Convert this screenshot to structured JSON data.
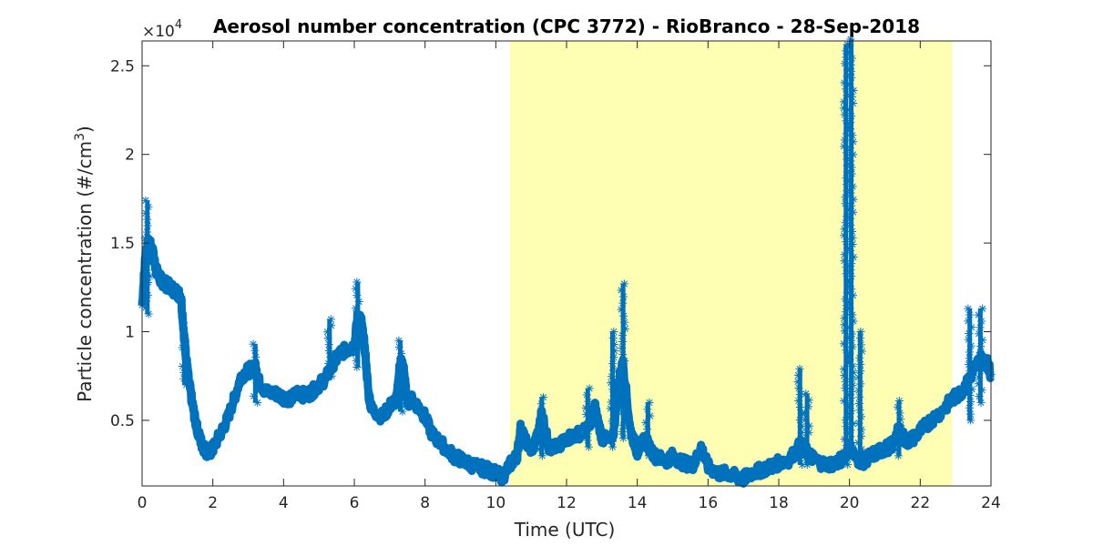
{
  "chart_data": {
    "type": "scatter",
    "title": "Aerosol number concentration (CPC 3772) - RioBranco - 28-Sep-2018",
    "xlabel": "Time (UTC)",
    "ylabel_main": "Particle concentration (#/cm",
    "ylabel_sup": "3",
    "ylabel_end": ")",
    "y_multiplier": "×10",
    "y_multiplier_exp": "4",
    "xlim": [
      0,
      24
    ],
    "ylim": [
      0.13,
      2.64
    ],
    "x_ticks": [
      0,
      2,
      4,
      6,
      8,
      10,
      12,
      14,
      16,
      18,
      20,
      22,
      24
    ],
    "y_ticks": [
      0.5,
      1,
      1.5,
      2,
      2.5
    ],
    "y_tick_labels": [
      "0.5",
      "1",
      "1.5",
      "2",
      "2.5"
    ],
    "grid": false,
    "marker": "asterisk",
    "series_color": "#0072BD",
    "shaded_region": {
      "x_start": 10.4,
      "x_end": 22.9,
      "color": "#FFFFB3"
    },
    "series": [
      {
        "x": [
          0.0,
          0.1,
          0.2,
          0.3,
          0.4,
          0.5,
          0.6,
          0.8,
          1.0,
          1.1,
          1.2,
          1.25,
          1.3,
          1.4,
          1.5,
          1.6,
          1.7,
          1.8,
          1.9,
          2.0,
          2.2,
          2.4,
          2.6,
          2.8,
          3.0,
          3.2,
          3.3,
          3.5,
          3.8,
          4.0,
          4.2,
          4.4,
          4.6,
          4.8,
          5.0,
          5.2,
          5.4,
          5.6,
          5.8,
          6.0,
          6.1,
          6.2,
          6.3,
          6.4,
          6.5,
          6.8,
          7.0,
          7.2,
          7.3,
          7.4,
          7.5,
          7.6,
          7.8,
          8.0,
          8.2,
          8.5,
          8.8,
          9.0,
          9.3,
          9.6,
          9.8,
          10.0,
          10.2,
          10.4,
          10.6,
          10.7,
          10.8,
          11.0,
          11.2,
          11.3,
          11.5,
          11.8,
          12.0,
          12.3,
          12.6,
          12.8,
          13.0,
          13.3,
          13.5,
          13.6,
          13.8,
          14.0,
          14.2,
          14.5,
          14.8,
          15.0,
          15.3,
          15.6,
          15.8,
          16.0,
          16.3,
          16.6,
          16.8,
          17.0,
          17.2,
          17.5,
          17.8,
          18.0,
          18.3,
          18.6,
          18.8,
          19.0,
          19.3,
          19.6,
          19.8,
          20.0,
          20.2,
          20.4,
          20.6,
          20.8,
          21.0,
          21.2,
          21.4,
          21.6,
          21.8,
          22.0,
          22.3,
          22.6,
          22.9,
          23.1,
          23.3,
          23.5,
          23.7,
          23.9,
          24.0
        ],
        "y": [
          1.15,
          1.45,
          1.5,
          1.45,
          1.35,
          1.3,
          1.28,
          1.25,
          1.22,
          1.2,
          0.95,
          0.85,
          0.75,
          0.62,
          0.5,
          0.42,
          0.36,
          0.33,
          0.32,
          0.34,
          0.42,
          0.5,
          0.62,
          0.75,
          0.78,
          0.8,
          0.72,
          0.66,
          0.65,
          0.63,
          0.62,
          0.66,
          0.64,
          0.66,
          0.7,
          0.74,
          0.82,
          0.88,
          0.9,
          0.92,
          1.1,
          1.05,
          0.9,
          0.65,
          0.56,
          0.52,
          0.58,
          0.62,
          0.85,
          0.78,
          0.6,
          0.62,
          0.58,
          0.52,
          0.42,
          0.36,
          0.3,
          0.28,
          0.25,
          0.23,
          0.22,
          0.2,
          0.18,
          0.25,
          0.3,
          0.45,
          0.4,
          0.33,
          0.42,
          0.55,
          0.35,
          0.35,
          0.4,
          0.42,
          0.45,
          0.58,
          0.4,
          0.38,
          0.75,
          0.82,
          0.45,
          0.32,
          0.4,
          0.3,
          0.27,
          0.3,
          0.26,
          0.25,
          0.35,
          0.24,
          0.2,
          0.2,
          0.18,
          0.17,
          0.2,
          0.22,
          0.24,
          0.26,
          0.28,
          0.36,
          0.32,
          0.28,
          0.25,
          0.26,
          0.28,
          0.35,
          0.28,
          0.27,
          0.3,
          0.32,
          0.34,
          0.36,
          0.45,
          0.38,
          0.4,
          0.44,
          0.5,
          0.55,
          0.62,
          0.65,
          0.7,
          0.78,
          0.85,
          0.82,
          0.76
        ]
      }
    ],
    "spikes": [
      {
        "x": 0.15,
        "y_low": 1.1,
        "y_high": 1.74
      },
      {
        "x": 1.2,
        "y_low": 0.7,
        "y_high": 1.05
      },
      {
        "x": 3.2,
        "y_low": 0.6,
        "y_high": 0.93
      },
      {
        "x": 5.3,
        "y_low": 0.75,
        "y_high": 1.07
      },
      {
        "x": 6.1,
        "y_low": 0.8,
        "y_high": 1.28
      },
      {
        "x": 7.3,
        "y_low": 0.55,
        "y_high": 0.95
      },
      {
        "x": 11.3,
        "y_low": 0.3,
        "y_high": 0.63
      },
      {
        "x": 12.6,
        "y_low": 0.35,
        "y_high": 0.68
      },
      {
        "x": 13.3,
        "y_low": 0.35,
        "y_high": 1.0
      },
      {
        "x": 13.6,
        "y_low": 0.4,
        "y_high": 1.27
      },
      {
        "x": 14.3,
        "y_low": 0.3,
        "y_high": 0.6
      },
      {
        "x": 18.6,
        "y_low": 0.25,
        "y_high": 0.79
      },
      {
        "x": 18.8,
        "y_low": 0.25,
        "y_high": 0.65
      },
      {
        "x": 19.9,
        "y_low": 0.25,
        "y_high": 2.62
      },
      {
        "x": 20.05,
        "y_low": 0.3,
        "y_high": 2.65
      },
      {
        "x": 20.3,
        "y_low": 0.3,
        "y_high": 1.0
      },
      {
        "x": 21.4,
        "y_low": 0.3,
        "y_high": 0.61
      },
      {
        "x": 23.4,
        "y_low": 0.5,
        "y_high": 1.13
      },
      {
        "x": 23.7,
        "y_low": 0.6,
        "y_high": 1.13
      }
    ]
  }
}
